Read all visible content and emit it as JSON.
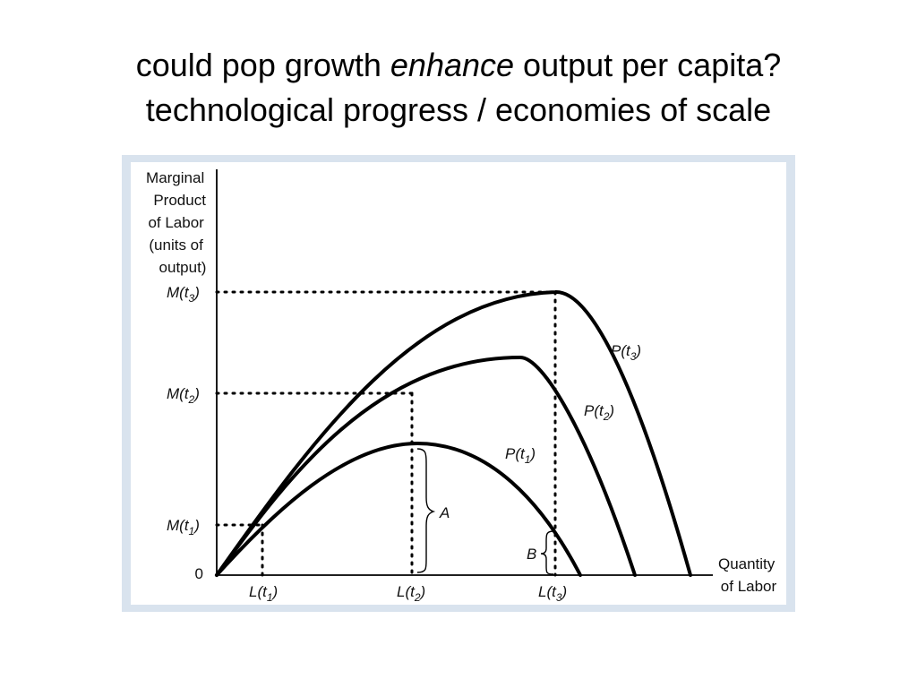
{
  "title": {
    "line1_pre": "could pop growth ",
    "line1_em": "enhance",
    "line1_post": " output per capita?",
    "line2": "technological progress / economies of scale"
  },
  "chart_data": {
    "type": "line",
    "ylabel": [
      "Marginal",
      "Product",
      "of Labor",
      "(units of",
      "output)"
    ],
    "xlabel": [
      "Quantity",
      "of Labor"
    ],
    "origin_label": "0",
    "y_ticks": [
      {
        "main": "M(t",
        "sub": "1",
        "close": ")"
      },
      {
        "main": "M(t",
        "sub": "2",
        "close": ")"
      },
      {
        "main": "M(t",
        "sub": "3",
        "close": ")"
      }
    ],
    "x_ticks": [
      {
        "main": "L(t",
        "sub": "1",
        "close": ")"
      },
      {
        "main": "L(t",
        "sub": "2",
        "close": ")"
      },
      {
        "main": "L(t",
        "sub": "3",
        "close": ")"
      }
    ],
    "series": [
      {
        "name": "P(t1)",
        "main": "P(t",
        "sub": "1",
        "close": ")"
      },
      {
        "name": "P(t2)",
        "main": "P(t",
        "sub": "2",
        "close": ")"
      },
      {
        "name": "P(t3)",
        "main": "P(t",
        "sub": "3",
        "close": ")"
      }
    ],
    "annotations": [
      "A",
      "B"
    ],
    "axis_ticks_labeled_only": true,
    "grid": false,
    "line_color": "#000000"
  }
}
